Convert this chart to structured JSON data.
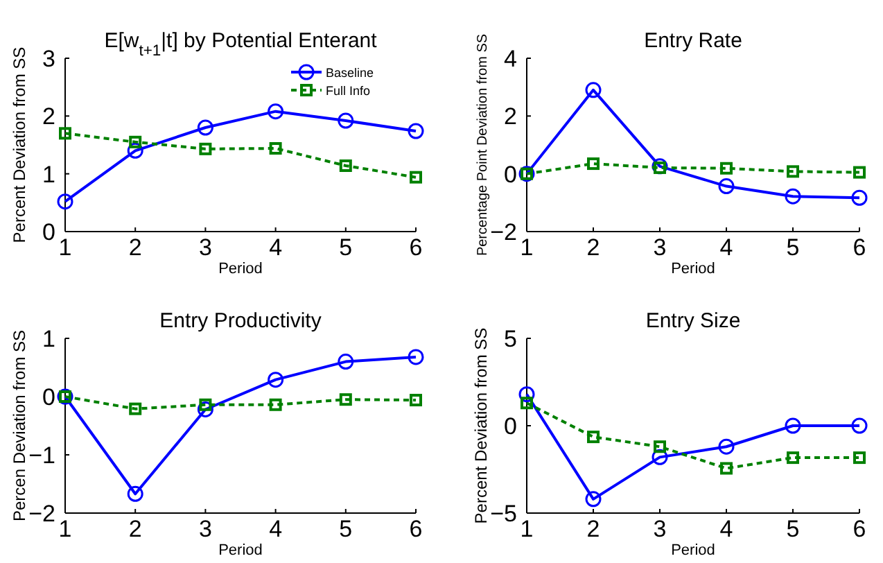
{
  "chart_data": [
    {
      "type": "line",
      "title": "E[w$_{t+1}$|t] by Potential Enterant",
      "xlabel": "Period",
      "ylabel": "Percent Deviation from SS",
      "x": [
        1,
        2,
        3,
        4,
        5,
        6
      ],
      "xlim": [
        1,
        6
      ],
      "xticks": [
        1,
        2,
        3,
        4,
        5,
        6
      ],
      "ylim": [
        0,
        3
      ],
      "yticks": [
        0,
        1,
        2,
        3
      ],
      "grid": false,
      "legend": "top right",
      "series": [
        {
          "name": "Baseline",
          "color": "#0000ff",
          "marker": "circle",
          "line_style": "solid",
          "values": [
            0.52,
            1.4,
            1.8,
            2.08,
            1.92,
            1.74
          ]
        },
        {
          "name": "Full Info",
          "color": "#008000",
          "marker": "square",
          "line_style": "dashed",
          "values": [
            1.7,
            1.55,
            1.43,
            1.44,
            1.14,
            0.94
          ]
        }
      ]
    },
    {
      "type": "line",
      "title": "Entry Rate",
      "xlabel": "Period",
      "ylabel": "Percentage Point Deviation from SS",
      "x": [
        1,
        2,
        3,
        4,
        5,
        6
      ],
      "xlim": [
        1,
        6
      ],
      "xticks": [
        1,
        2,
        3,
        4,
        5,
        6
      ],
      "ylim": [
        -2,
        4
      ],
      "yticks": [
        -2,
        0,
        2,
        4
      ],
      "grid": false,
      "legend": false,
      "series": [
        {
          "color": "#0000ff",
          "marker": "circle",
          "line_style": "solid",
          "values": [
            0,
            2.9,
            0.26,
            -0.43,
            -0.78,
            -0.83
          ]
        },
        {
          "color": "#008000",
          "marker": "square",
          "line_style": "dashed",
          "values": [
            0,
            0.35,
            0.21,
            0.19,
            0.08,
            0.05
          ]
        }
      ]
    },
    {
      "type": "line",
      "title": "Entry Productivity",
      "xlabel": "Period",
      "ylabel": "Percen Deviation from SS",
      "x": [
        1,
        2,
        3,
        4,
        5,
        6
      ],
      "xlim": [
        1,
        6
      ],
      "xticks": [
        1,
        2,
        3,
        4,
        5,
        6
      ],
      "ylim": [
        -2,
        1
      ],
      "yticks": [
        -2,
        -1,
        0,
        1
      ],
      "grid": false,
      "legend": false,
      "series": [
        {
          "color": "#0000ff",
          "marker": "circle",
          "line_style": "solid",
          "values": [
            0,
            -1.67,
            -0.22,
            0.29,
            0.6,
            0.68
          ]
        },
        {
          "color": "#008000",
          "marker": "square",
          "line_style": "dashed",
          "values": [
            0,
            -0.21,
            -0.14,
            -0.14,
            -0.05,
            -0.06
          ]
        }
      ]
    },
    {
      "type": "line",
      "title": "Entry Size",
      "xlabel": "Period",
      "ylabel": "Percent Deviation from SS",
      "x": [
        1,
        2,
        3,
        4,
        5,
        6
      ],
      "xlim": [
        1,
        6
      ],
      "xticks": [
        1,
        2,
        3,
        4,
        5,
        6
      ],
      "ylim": [
        -5,
        5
      ],
      "yticks": [
        -5,
        0,
        5
      ],
      "grid": false,
      "legend": false,
      "series": [
        {
          "color": "#0000ff",
          "marker": "circle",
          "line_style": "solid",
          "values": [
            1.8,
            -4.2,
            -1.8,
            -1.2,
            0,
            0
          ]
        },
        {
          "color": "#008000",
          "marker": "square",
          "line_style": "dashed",
          "values": [
            1.3,
            -0.64,
            -1.2,
            -2.44,
            -1.83,
            -1.83
          ]
        }
      ]
    }
  ]
}
